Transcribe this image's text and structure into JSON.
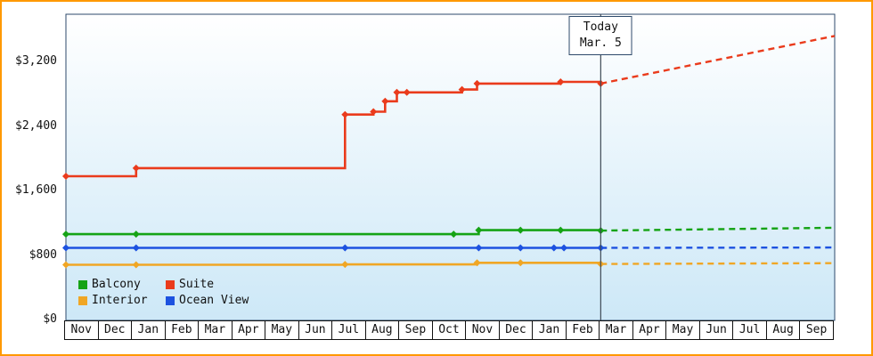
{
  "chart_data": {
    "type": "line",
    "title": "",
    "description": "Cruise cabin price history with forecast (dashed) after today marker",
    "colors": {
      "frame_border": "#ff9900",
      "plot_border": "#2e4a6b",
      "today_line": "#3f4a55",
      "background_top": "#ffffff",
      "background_bottom": "#cde8f7",
      "month_cell_border": "#111111"
    },
    "y_axis": {
      "ticks": [
        0,
        800,
        1600,
        2400,
        3200
      ],
      "tick_labels": [
        "$0",
        "$800",
        "$1,600",
        "$2,400",
        "$3,200"
      ],
      "max_value": 3800,
      "ylim": [
        0,
        3800
      ]
    },
    "x_axis": {
      "months": [
        "Nov",
        "Dec",
        "Jan",
        "Feb",
        "Mar",
        "Apr",
        "May",
        "Jun",
        "Jul",
        "Aug",
        "Sep",
        "Oct",
        "Nov",
        "Dec",
        "Jan",
        "Feb",
        "Mar",
        "Apr",
        "May",
        "Jun",
        "Jul",
        "Aug",
        "Sep"
      ]
    },
    "today_marker": {
      "line1": "Today",
      "line2": "Mar. 5",
      "month_index": 16
    },
    "series": [
      {
        "name": "Suite",
        "color": "#ea3b1c",
        "solid_points": [
          [
            0,
            1790
          ],
          [
            2.1,
            1890
          ],
          [
            8.35,
            2555
          ],
          [
            9.2,
            2590
          ],
          [
            9.55,
            2720
          ],
          [
            9.9,
            2830
          ],
          [
            10.2,
            2830
          ],
          [
            11.85,
            2865
          ],
          [
            12.3,
            2940
          ],
          [
            14.8,
            2960
          ],
          [
            16,
            2940
          ]
        ],
        "markers": [
          [
            0,
            1790
          ],
          [
            2.1,
            1890
          ],
          [
            8.35,
            2555
          ],
          [
            9.2,
            2590
          ],
          [
            9.55,
            2720
          ],
          [
            9.9,
            2830
          ],
          [
            10.2,
            2830
          ],
          [
            11.85,
            2865
          ],
          [
            12.3,
            2940
          ],
          [
            14.8,
            2960
          ],
          [
            16,
            2940
          ]
        ],
        "dashed_points": [
          [
            16,
            2940
          ],
          [
            23,
            3530
          ]
        ]
      },
      {
        "name": "Balcony",
        "color": "#15a315",
        "solid_points": [
          [
            0,
            1070
          ],
          [
            2.1,
            1070
          ],
          [
            11.6,
            1070
          ],
          [
            12.35,
            1120
          ],
          [
            13.6,
            1120
          ],
          [
            14.8,
            1120
          ],
          [
            16,
            1115
          ]
        ],
        "markers": [
          [
            0,
            1070
          ],
          [
            2.1,
            1070
          ],
          [
            11.6,
            1070
          ],
          [
            12.35,
            1120
          ],
          [
            13.6,
            1120
          ],
          [
            14.8,
            1120
          ],
          [
            16,
            1115
          ]
        ],
        "dashed_points": [
          [
            16,
            1115
          ],
          [
            23,
            1150
          ]
        ]
      },
      {
        "name": "Ocean View",
        "color": "#1d52e0",
        "solid_points": [
          [
            0,
            900
          ],
          [
            2.1,
            900
          ],
          [
            8.35,
            900
          ],
          [
            12.35,
            900
          ],
          [
            13.6,
            900
          ],
          [
            14.6,
            900
          ],
          [
            14.9,
            900
          ],
          [
            16,
            900
          ]
        ],
        "markers": [
          [
            0,
            900
          ],
          [
            2.1,
            900
          ],
          [
            8.35,
            900
          ],
          [
            12.35,
            900
          ],
          [
            13.6,
            900
          ],
          [
            14.6,
            900
          ],
          [
            14.9,
            900
          ],
          [
            16,
            900
          ]
        ],
        "dashed_points": [
          [
            16,
            900
          ],
          [
            23,
            905
          ]
        ]
      },
      {
        "name": "Interior",
        "color": "#f0a625",
        "solid_points": [
          [
            0,
            690
          ],
          [
            2.1,
            690
          ],
          [
            8.35,
            695
          ],
          [
            12.3,
            715
          ],
          [
            13.6,
            715
          ],
          [
            16,
            700
          ]
        ],
        "markers": [
          [
            0,
            690
          ],
          [
            2.1,
            690
          ],
          [
            8.35,
            695
          ],
          [
            12.3,
            715
          ],
          [
            13.6,
            715
          ],
          [
            16,
            700
          ]
        ],
        "dashed_points": [
          [
            16,
            700
          ],
          [
            23,
            710
          ]
        ]
      }
    ],
    "legend": [
      {
        "label": "Balcony",
        "color": "#15a315"
      },
      {
        "label": "Suite",
        "color": "#ea3b1c"
      },
      {
        "label": "Interior",
        "color": "#f0a625"
      },
      {
        "label": "Ocean View",
        "color": "#1d52e0"
      }
    ]
  }
}
